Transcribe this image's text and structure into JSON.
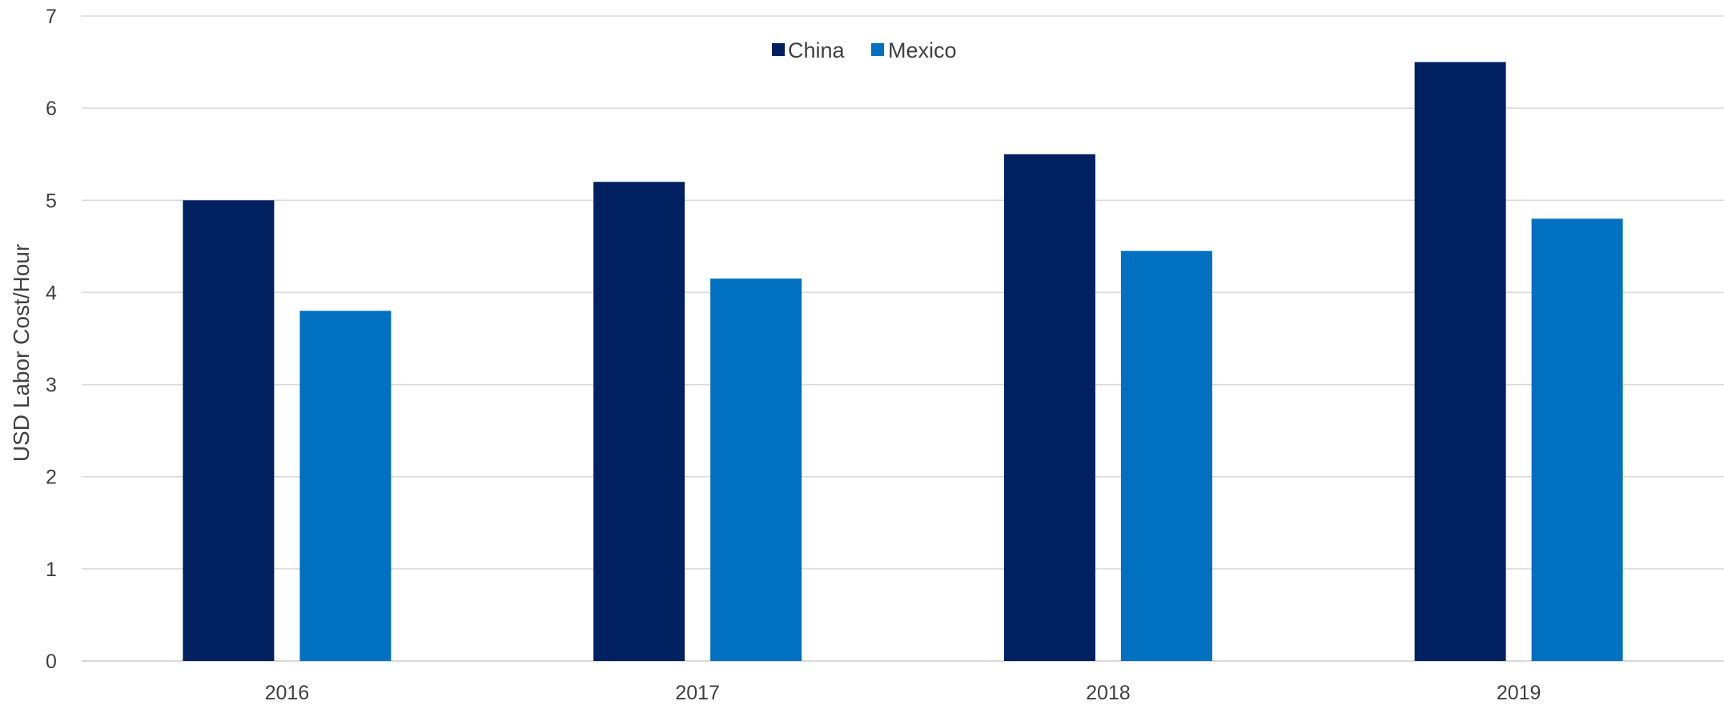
{
  "chart_data": {
    "type": "bar",
    "categories": [
      "2016",
      "2017",
      "2018",
      "2019"
    ],
    "series": [
      {
        "name": "China",
        "color": "#002060",
        "values": [
          5.0,
          5.2,
          5.5,
          6.5
        ]
      },
      {
        "name": "Mexico",
        "color": "#0070c0",
        "values": [
          3.8,
          4.15,
          4.45,
          4.8
        ]
      }
    ],
    "xlabel": "",
    "ylabel": "USD Labor Cost/Hour",
    "ylim": [
      0,
      7
    ],
    "yticks": [
      "0",
      "1",
      "2",
      "3",
      "4",
      "5",
      "6",
      "7"
    ],
    "grid": true,
    "legend_position": "top-center"
  }
}
